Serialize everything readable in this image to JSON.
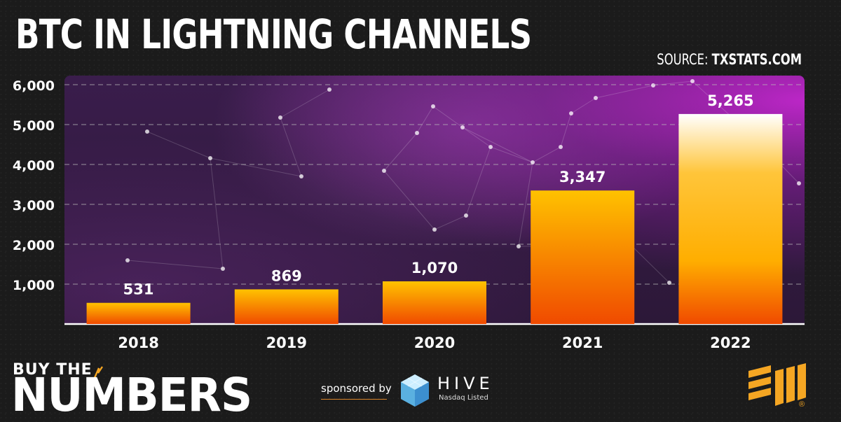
{
  "title": "BTC IN LIGHTNING CHANNELS",
  "source": {
    "label": "SOURCE:",
    "value": "TXSTATS.COM"
  },
  "colors": {
    "bar_top": "#ffc200",
    "bar_bottom": "#f04a00",
    "grid": "#bbbbbb",
    "accent": "#f5a623"
  },
  "chart_data": {
    "type": "bar",
    "title": "BTC IN LIGHTNING CHANNELS",
    "xlabel": "",
    "ylabel": "",
    "categories": [
      "2018",
      "2019",
      "2020",
      "2021",
      "2022"
    ],
    "values": [
      531,
      869,
      1070,
      3347,
      5265
    ],
    "value_labels": [
      "531",
      "869",
      "1,070",
      "3,347",
      "5,265"
    ],
    "ylim": [
      0,
      6000
    ],
    "yticks": [
      1000,
      2000,
      3000,
      4000,
      5000,
      6000
    ],
    "ytick_labels": [
      "1,000",
      "2,000",
      "3,000",
      "4,000",
      "5,000",
      "6,000"
    ],
    "grid": true,
    "legend": "none"
  },
  "footer": {
    "brand_top": "BUY THE",
    "brand_main": "NUMBERS",
    "sponsored_by": "sponsored by",
    "sponsor_name": "HIVE",
    "sponsor_sub": "Nasdaq Listed",
    "registered": "®"
  }
}
